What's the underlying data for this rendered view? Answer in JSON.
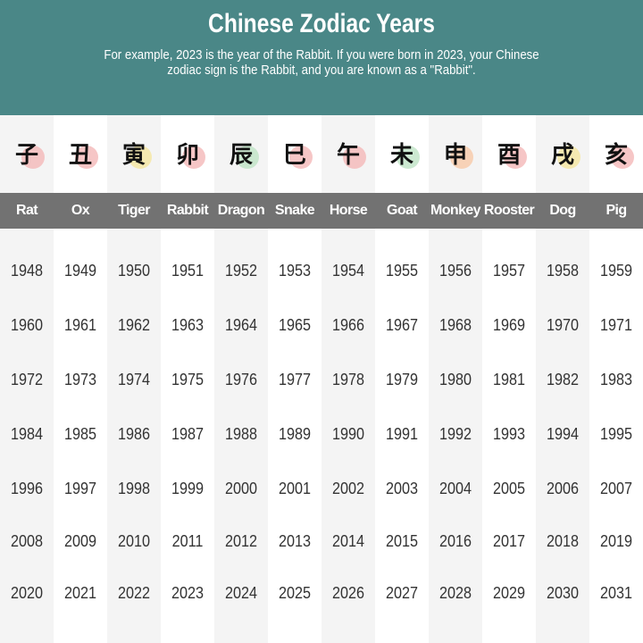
{
  "header": {
    "title": "Chinese Zodiac Years",
    "subtitle": "For example, 2023 is the year of the Rabbit. If you were born in 2023, your Chinese zodiac sign is the Rabbit, and you are known as a \"Rabbit\"."
  },
  "colors": {
    "header_bg": "#4a8787",
    "name_bar": "#727272",
    "alt_column": "#f4f4f4"
  },
  "signs": [
    {
      "name": "Rat",
      "icon": "rat-ink-icon",
      "char": "子",
      "accent": "#f4b8b8",
      "years": [
        "1948",
        "1960",
        "1972",
        "1984",
        "1996",
        "2008",
        "2020"
      ]
    },
    {
      "name": "Ox",
      "icon": "ox-ink-icon",
      "char": "丑",
      "accent": "#f4b8b8",
      "years": [
        "1949",
        "1961",
        "1973",
        "1985",
        "1997",
        "2009",
        "2021"
      ]
    },
    {
      "name": "Tiger",
      "icon": "tiger-ink-icon",
      "char": "寅",
      "accent": "#f5e6a0",
      "years": [
        "1950",
        "1962",
        "1974",
        "1986",
        "1998",
        "2010",
        "2022"
      ]
    },
    {
      "name": "Rabbit",
      "icon": "rabbit-ink-icon",
      "char": "卯",
      "accent": "#f4b8b8",
      "years": [
        "1951",
        "1963",
        "1975",
        "1987",
        "1999",
        "2011",
        "2023"
      ]
    },
    {
      "name": "Dragon",
      "icon": "dragon-ink-icon",
      "char": "辰",
      "accent": "#bfe3c6",
      "years": [
        "1952",
        "1964",
        "1976",
        "1988",
        "2000",
        "2012",
        "2024"
      ]
    },
    {
      "name": "Snake",
      "icon": "snake-ink-icon",
      "char": "巳",
      "accent": "#f4b8b8",
      "years": [
        "1953",
        "1965",
        "1977",
        "1989",
        "2001",
        "2013",
        "2025"
      ]
    },
    {
      "name": "Horse",
      "icon": "horse-ink-icon",
      "char": "午",
      "accent": "#f4b8b8",
      "years": [
        "1954",
        "1966",
        "1978",
        "1990",
        "2002",
        "2014",
        "2026"
      ]
    },
    {
      "name": "Goat",
      "icon": "goat-ink-icon",
      "char": "未",
      "accent": "#bfe3c6",
      "years": [
        "1955",
        "1967",
        "1979",
        "1991",
        "2003",
        "2015",
        "2027"
      ]
    },
    {
      "name": "Monkey",
      "icon": "monkey-ink-icon",
      "char": "申",
      "accent": "#f7c9a8",
      "years": [
        "1956",
        "1968",
        "1980",
        "1992",
        "2004",
        "2016",
        "2028"
      ]
    },
    {
      "name": "Rooster",
      "icon": "rooster-ink-icon",
      "char": "酉",
      "accent": "#f4b8b8",
      "years": [
        "1957",
        "1969",
        "1981",
        "1993",
        "2005",
        "2017",
        "2029"
      ]
    },
    {
      "name": "Dog",
      "icon": "dog-ink-icon",
      "char": "戌",
      "accent": "#f5e6a0",
      "years": [
        "1958",
        "1970",
        "1982",
        "1994",
        "2006",
        "2018",
        "2030"
      ]
    },
    {
      "name": "Pig",
      "icon": "pig-ink-icon",
      "char": "亥",
      "accent": "#f4b8b8",
      "years": [
        "1959",
        "1971",
        "1983",
        "1995",
        "2007",
        "2019",
        "2031"
      ]
    }
  ]
}
